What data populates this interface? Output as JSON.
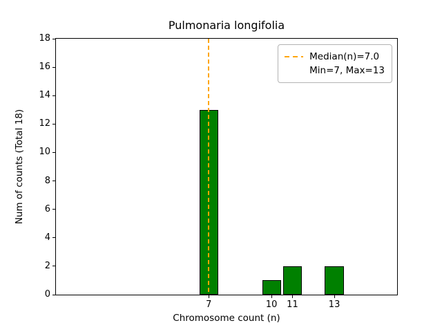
{
  "chart_data": {
    "type": "bar",
    "title": "Pulmonaria longifolia",
    "xlabel": "Chromosome count (n)",
    "ylabel": "Num of counts    (Total 18)",
    "x": [
      7,
      10,
      11,
      13
    ],
    "values": [
      13,
      1,
      2,
      2
    ],
    "bar_width": 0.9,
    "bar_color": "#008000",
    "bar_edge_color": "#000000",
    "xlim": [
      -0.3,
      16.0
    ],
    "ylim": [
      0,
      18
    ],
    "yticks": [
      0,
      2,
      4,
      6,
      8,
      10,
      12,
      14,
      16,
      18
    ],
    "xticks": [
      7,
      10,
      11,
      13
    ],
    "median": 7.0,
    "median_line_color": "#ffa500",
    "grid": false,
    "legend": {
      "position": "upper right",
      "entries": [
        {
          "label": "Median(n)=7.0",
          "handle": "dashed-line"
        },
        {
          "label": "Min=7, Max=13",
          "handle": "none"
        }
      ]
    }
  }
}
